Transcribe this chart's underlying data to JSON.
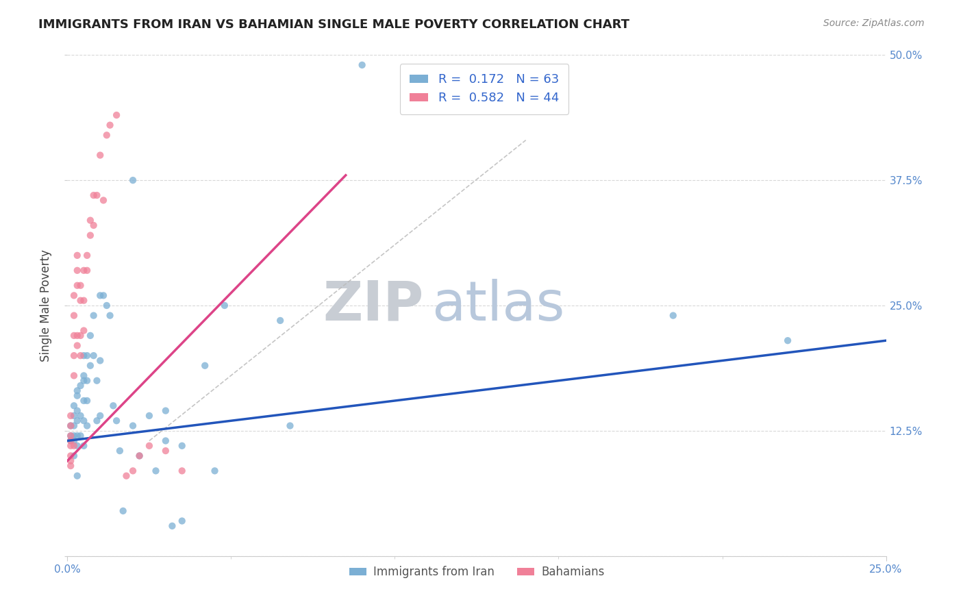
{
  "title": "IMMIGRANTS FROM IRAN VS BAHAMIAN SINGLE MALE POVERTY CORRELATION CHART",
  "source": "Source: ZipAtlas.com",
  "ylabel_label": "Single Male Poverty",
  "legend_label_blue": "Immigrants from Iran",
  "legend_label_pink": "Bahamians",
  "blue_scatter_x": [
    0.001,
    0.001,
    0.001,
    0.002,
    0.002,
    0.002,
    0.002,
    0.002,
    0.002,
    0.003,
    0.003,
    0.003,
    0.003,
    0.003,
    0.003,
    0.003,
    0.004,
    0.004,
    0.004,
    0.005,
    0.005,
    0.005,
    0.005,
    0.005,
    0.005,
    0.006,
    0.006,
    0.006,
    0.006,
    0.007,
    0.007,
    0.008,
    0.008,
    0.009,
    0.009,
    0.01,
    0.01,
    0.01,
    0.011,
    0.012,
    0.013,
    0.014,
    0.015,
    0.016,
    0.017,
    0.02,
    0.02,
    0.022,
    0.025,
    0.027,
    0.03,
    0.03,
    0.032,
    0.035,
    0.035,
    0.042,
    0.045,
    0.048,
    0.065,
    0.068,
    0.09,
    0.185,
    0.22
  ],
  "blue_scatter_y": [
    0.13,
    0.12,
    0.115,
    0.15,
    0.14,
    0.13,
    0.12,
    0.115,
    0.1,
    0.165,
    0.16,
    0.145,
    0.135,
    0.12,
    0.11,
    0.08,
    0.17,
    0.14,
    0.12,
    0.2,
    0.18,
    0.175,
    0.155,
    0.135,
    0.11,
    0.2,
    0.175,
    0.155,
    0.13,
    0.22,
    0.19,
    0.24,
    0.2,
    0.175,
    0.135,
    0.26,
    0.195,
    0.14,
    0.26,
    0.25,
    0.24,
    0.15,
    0.135,
    0.105,
    0.045,
    0.375,
    0.13,
    0.1,
    0.14,
    0.085,
    0.145,
    0.115,
    0.03,
    0.11,
    0.035,
    0.19,
    0.085,
    0.25,
    0.235,
    0.13,
    0.49,
    0.24,
    0.215
  ],
  "pink_scatter_x": [
    0.001,
    0.001,
    0.001,
    0.001,
    0.001,
    0.001,
    0.001,
    0.001,
    0.002,
    0.002,
    0.002,
    0.002,
    0.002,
    0.002,
    0.003,
    0.003,
    0.003,
    0.003,
    0.003,
    0.004,
    0.004,
    0.004,
    0.004,
    0.005,
    0.005,
    0.005,
    0.006,
    0.006,
    0.007,
    0.007,
    0.008,
    0.008,
    0.009,
    0.01,
    0.011,
    0.012,
    0.013,
    0.015,
    0.018,
    0.02,
    0.022,
    0.025,
    0.03,
    0.035
  ],
  "pink_scatter_y": [
    0.14,
    0.13,
    0.12,
    0.115,
    0.11,
    0.1,
    0.095,
    0.09,
    0.26,
    0.24,
    0.22,
    0.2,
    0.18,
    0.11,
    0.3,
    0.285,
    0.27,
    0.22,
    0.21,
    0.27,
    0.255,
    0.22,
    0.2,
    0.285,
    0.255,
    0.225,
    0.3,
    0.285,
    0.335,
    0.32,
    0.36,
    0.33,
    0.36,
    0.4,
    0.355,
    0.42,
    0.43,
    0.44,
    0.08,
    0.085,
    0.1,
    0.11,
    0.105,
    0.085
  ],
  "blue_line_x": [
    0.0,
    0.25
  ],
  "blue_line_y": [
    0.115,
    0.215
  ],
  "pink_line_x": [
    0.0,
    0.085
  ],
  "pink_line_y": [
    0.095,
    0.38
  ],
  "diagonal_line_x": [
    0.025,
    0.14
  ],
  "diagonal_line_y": [
    0.115,
    0.415
  ],
  "xlim": [
    0.0,
    0.25
  ],
  "ylim": [
    0.0,
    0.5
  ],
  "bg_color": "#ffffff",
  "scatter_alpha": 0.75,
  "scatter_size": 55,
  "blue_color": "#7bafd4",
  "pink_color": "#f08098",
  "blue_line_color": "#2255bb",
  "pink_line_color": "#dd4488",
  "grid_color": "#d8d8d8",
  "watermark_zip_color": "#c8cdd4",
  "watermark_atlas_color": "#b8c8dc"
}
